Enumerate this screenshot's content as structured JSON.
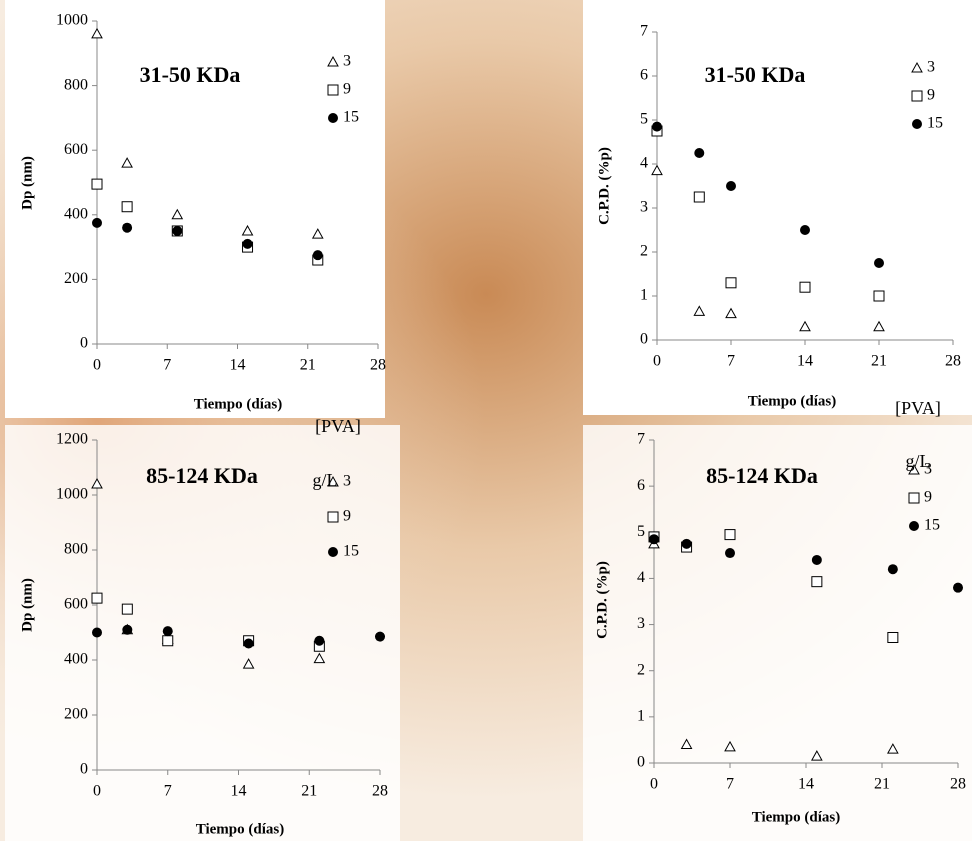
{
  "chart_data": [
    {
      "type": "scatter",
      "title": "31-50 KDa",
      "x_label": "Tiempo (días)",
      "y_label": "Dp (nm)",
      "annotations": [
        "[PVA]"
      ],
      "x": [
        0,
        3,
        8,
        15,
        22
      ],
      "series": [
        {
          "name": "3",
          "marker": "triangle",
          "color": "#000000",
          "values": [
            960,
            560,
            400,
            350,
            340
          ]
        },
        {
          "name": "9",
          "marker": "square",
          "color": "#000000",
          "values": [
            495,
            425,
            350,
            300,
            260
          ]
        },
        {
          "name": "15",
          "marker": "circle",
          "color": "#000000",
          "values": [
            375,
            360,
            350,
            310,
            275
          ]
        }
      ],
      "xlim": [
        0,
        28
      ],
      "xticks": [
        0,
        7,
        14,
        21,
        28
      ],
      "ylim": [
        0,
        1000
      ],
      "yticks": [
        0,
        200,
        400,
        600,
        800,
        1000
      ]
    },
    {
      "type": "scatter",
      "title": "31-50 KDa",
      "x_label": "Tiempo (días)",
      "y_label": "C.P.D. (%p)",
      "annotations": [
        "[PVA]"
      ],
      "x": [
        0,
        4,
        7,
        14,
        21
      ],
      "series": [
        {
          "name": "3",
          "marker": "triangle",
          "color": "#000000",
          "values": [
            3.85,
            0.65,
            0.6,
            0.3,
            0.3
          ]
        },
        {
          "name": "9",
          "marker": "square",
          "color": "#000000",
          "values": [
            4.75,
            3.25,
            1.3,
            1.2,
            1.0
          ]
        },
        {
          "name": "15",
          "marker": "circle",
          "color": "#000000",
          "values": [
            4.85,
            4.25,
            3.5,
            2.5,
            1.75
          ]
        }
      ],
      "xlim": [
        0,
        28
      ],
      "xticks": [
        0,
        7,
        14,
        21,
        28
      ],
      "ylim": [
        0,
        7
      ],
      "yticks": [
        0,
        1,
        2,
        3,
        4,
        5,
        6,
        7
      ]
    },
    {
      "type": "scatter",
      "title": "85-124 KDa",
      "x_label": "Tiempo (días)",
      "y_label": "Dp (nm)",
      "annotations": [
        "g/L"
      ],
      "x": [
        0,
        3,
        7,
        15,
        22,
        28
      ],
      "series": [
        {
          "name": "3",
          "marker": "triangle",
          "color": "#000000",
          "values": [
            1040,
            510,
            475,
            385,
            405,
            null
          ]
        },
        {
          "name": "9",
          "marker": "square",
          "color": "#000000",
          "values": [
            625,
            585,
            470,
            470,
            450,
            null
          ]
        },
        {
          "name": "15",
          "marker": "circle",
          "color": "#000000",
          "values": [
            500,
            510,
            505,
            460,
            470,
            485
          ]
        }
      ],
      "xlim": [
        0,
        28
      ],
      "xticks": [
        0,
        7,
        14,
        21,
        28
      ],
      "ylim": [
        0,
        1200
      ],
      "yticks": [
        0,
        200,
        400,
        600,
        800,
        1000,
        1200
      ]
    },
    {
      "type": "scatter",
      "title": "85-124 KDa",
      "x_label": "Tiempo (días)",
      "y_label": "C.P.D. (%p)",
      "annotations": [
        "g/L"
      ],
      "x": [
        0,
        3,
        7,
        15,
        22,
        28
      ],
      "series": [
        {
          "name": "3",
          "marker": "triangle",
          "color": "#000000",
          "values": [
            4.75,
            0.4,
            0.35,
            0.15,
            0.3,
            null
          ]
        },
        {
          "name": "9",
          "marker": "square",
          "color": "#000000",
          "values": [
            4.9,
            4.68,
            4.95,
            3.93,
            2.72,
            null
          ]
        },
        {
          "name": "15",
          "marker": "circle",
          "color": "#000000",
          "values": [
            4.85,
            4.75,
            4.55,
            4.4,
            4.2,
            3.8
          ]
        }
      ],
      "xlim": [
        0,
        28
      ],
      "xticks": [
        0,
        7,
        14,
        21,
        28
      ],
      "ylim": [
        0,
        7
      ],
      "yticks": [
        0,
        1,
        2,
        3,
        4,
        5,
        6,
        7
      ]
    }
  ]
}
